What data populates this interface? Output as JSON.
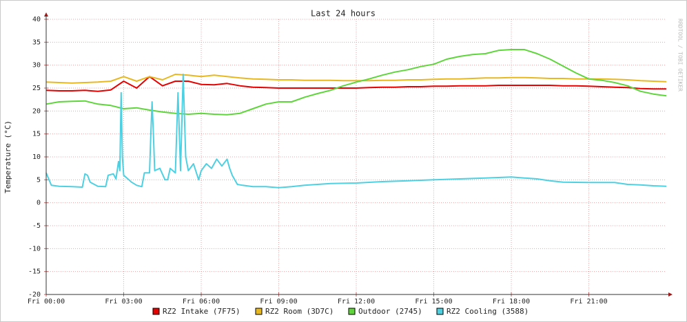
{
  "chart_data": {
    "type": "line",
    "title": "Last 24 hours",
    "y_label": "Temperature (°C)",
    "watermark": "RRDTOOL / TOBI OETIKER",
    "grid": true,
    "xlim": [
      0,
      24
    ],
    "ylim": [
      -20,
      40
    ],
    "yticks": [
      -20,
      -15,
      -10,
      -5,
      0,
      5,
      10,
      15,
      20,
      25,
      30,
      35,
      40
    ],
    "xticks": [
      {
        "value": 0,
        "label": "Fri 00:00"
      },
      {
        "value": 3,
        "label": "Fri 03:00"
      },
      {
        "value": 6,
        "label": "Fri 06:00"
      },
      {
        "value": 9,
        "label": "Fri 09:00"
      },
      {
        "value": 12,
        "label": "Fri 12:00"
      },
      {
        "value": 15,
        "label": "Fri 15:00"
      },
      {
        "value": 18,
        "label": "Fri 18:00"
      },
      {
        "value": 21,
        "label": "Fri 21:00"
      }
    ],
    "x": [
      0,
      0.5,
      1,
      1.5,
      2,
      2.5,
      3,
      3.5,
      4,
      4.5,
      5,
      5.5,
      6,
      6.5,
      7,
      7.5,
      8,
      8.5,
      9,
      9.5,
      10,
      10.5,
      11,
      11.5,
      12,
      12.5,
      13,
      13.5,
      14,
      14.5,
      15,
      15.5,
      16,
      16.5,
      17,
      17.5,
      18,
      18.5,
      19,
      19.5,
      20,
      20.5,
      21,
      21.5,
      22,
      22.5,
      23,
      23.5,
      24
    ],
    "series": [
      {
        "name": "RZ2 Intake (7F75)",
        "color": "#e60000",
        "values": [
          24.5,
          24.4,
          24.4,
          24.5,
          24.3,
          24.6,
          26.5,
          25,
          27.5,
          25.5,
          26.5,
          26.5,
          25.8,
          25.7,
          26,
          25.5,
          25.2,
          25.1,
          25,
          25,
          25,
          25,
          25,
          25,
          25,
          25.1,
          25.2,
          25.2,
          25.3,
          25.3,
          25.4,
          25.4,
          25.5,
          25.5,
          25.5,
          25.6,
          25.6,
          25.6,
          25.6,
          25.6,
          25.5,
          25.5,
          25.4,
          25.3,
          25.2,
          25.1,
          24.9,
          24.8,
          24.8
        ]
      },
      {
        "name": "RZ2 Room (3D7C)",
        "color": "#e8b820",
        "values": [
          26.3,
          26.2,
          26.1,
          26.2,
          26.3,
          26.5,
          27.5,
          26.5,
          27.5,
          26.8,
          28,
          27.8,
          27.5,
          27.8,
          27.5,
          27.2,
          27,
          26.9,
          26.8,
          26.8,
          26.7,
          26.7,
          26.7,
          26.6,
          26.6,
          26.6,
          26.7,
          26.7,
          26.8,
          26.8,
          26.9,
          27,
          27,
          27.1,
          27.2,
          27.2,
          27.3,
          27.3,
          27.2,
          27.1,
          27.1,
          27,
          27,
          27,
          26.9,
          26.8,
          26.6,
          26.5,
          26.4
        ]
      },
      {
        "name": "Outdoor (2745)",
        "color": "#5ed53a",
        "values": [
          21.5,
          22,
          22.1,
          22.2,
          21.5,
          21.2,
          20.5,
          20.7,
          20.2,
          19.8,
          19.5,
          19.3,
          19.5,
          19.3,
          19.2,
          19.5,
          20.5,
          21.5,
          22,
          22,
          23,
          23.8,
          24.5,
          25.5,
          26.3,
          27,
          27.8,
          28.5,
          29,
          29.7,
          30.2,
          31.3,
          31.9,
          32.3,
          32.5,
          33.2,
          33.4,
          33.4,
          32.5,
          31.3,
          29.8,
          28.3,
          27,
          26.7,
          26.2,
          25.5,
          24.3,
          23.7,
          23.3
        ]
      },
      {
        "name": "RZ2 Cooling (3588)",
        "color": "#4dd0e1",
        "x": [
          0,
          0.2,
          0.5,
          1,
          1.4,
          1.5,
          1.6,
          1.7,
          2,
          2.3,
          2.4,
          2.6,
          2.7,
          2.8,
          2.85,
          2.9,
          2.95,
          3,
          3.2,
          3.3,
          3.5,
          3.7,
          3.8,
          4,
          4.05,
          4.1,
          4.15,
          4.2,
          4.4,
          4.6,
          4.7,
          4.8,
          5,
          5.1,
          5.2,
          5.3,
          5.4,
          5.5,
          5.7,
          5.9,
          6,
          6.2,
          6.4,
          6.6,
          6.8,
          7,
          7.1,
          7.2,
          7.4,
          7.6,
          8,
          8.5,
          9,
          9.5,
          10,
          10.5,
          11,
          12,
          13,
          14,
          15,
          16,
          17,
          17.5,
          18,
          18.5,
          19,
          19.5,
          20,
          21,
          22,
          22.5,
          23,
          23.5,
          24
        ],
        "values": [
          6.5,
          3.8,
          3.6,
          3.5,
          3.4,
          6.3,
          6,
          4.5,
          3.6,
          3.5,
          6,
          6.3,
          5.2,
          9,
          7,
          24,
          10,
          6,
          5,
          4.5,
          3.8,
          3.5,
          6.5,
          6.5,
          15,
          22,
          15,
          7,
          7.5,
          5,
          5,
          7.5,
          6.5,
          24,
          7,
          28,
          10,
          7,
          8.5,
          5,
          7,
          8.5,
          7.5,
          9.5,
          8,
          9.5,
          7.5,
          6,
          4,
          3.8,
          3.5,
          3.5,
          3.3,
          3.5,
          3.8,
          4,
          4.2,
          4.3,
          4.6,
          4.8,
          5,
          5.2,
          5.4,
          5.5,
          5.6,
          5.4,
          5.2,
          4.8,
          4.5,
          4.4,
          4.4,
          4,
          3.9,
          3.7,
          3.6
        ]
      }
    ]
  }
}
